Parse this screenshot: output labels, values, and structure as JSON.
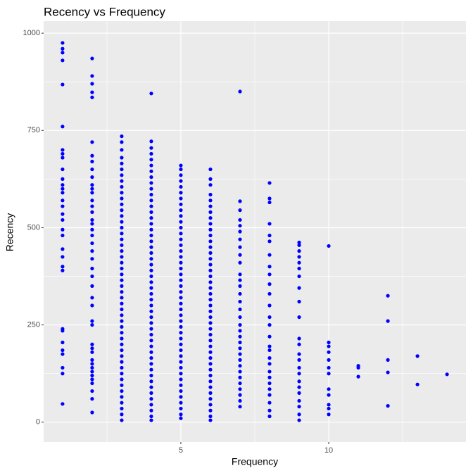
{
  "chart_data": {
    "type": "scatter",
    "title": "Recency vs Frequency",
    "x_label": "Frequency",
    "y_label": "Recency",
    "color": "#0000ff",
    "xlim": [
      0.36,
      14.64
    ],
    "ylim": [
      -51,
      1031
    ],
    "xticks": [
      5,
      10
    ],
    "yticks": [
      0,
      250,
      500,
      750,
      1000
    ],
    "grid": true,
    "columns": [
      {
        "x": 1,
        "values": [
          975,
          960,
          950,
          930,
          868,
          760,
          700,
          690,
          680,
          650,
          625,
          610,
          600,
          590,
          570,
          555,
          535,
          520,
          495,
          480,
          445,
          425,
          400,
          390,
          240,
          235,
          205,
          185,
          175,
          140,
          125,
          47
        ]
      },
      {
        "x": 2,
        "values": [
          935,
          890,
          870,
          848,
          835,
          720,
          685,
          670,
          650,
          630,
          610,
          600,
          590,
          570,
          555,
          540,
          520,
          510,
          495,
          480,
          460,
          440,
          420,
          395,
          375,
          350,
          320,
          300,
          260,
          250,
          200,
          190,
          180,
          160,
          150,
          140,
          130,
          120,
          110,
          100,
          80,
          60,
          25
        ]
      },
      {
        "x": 3,
        "values": [
          735,
          720,
          700,
          680,
          665,
          650,
          635,
          620,
          605,
          590,
          575,
          560,
          545,
          530,
          515,
          500,
          485,
          470,
          455,
          440,
          425,
          410,
          395,
          380,
          365,
          350,
          335,
          320,
          305,
          290,
          275,
          260,
          245,
          230,
          215,
          200,
          185,
          170,
          155,
          140,
          125,
          110,
          95,
          80,
          65,
          50,
          35,
          20,
          5
        ]
      },
      {
        "x": 4,
        "values": [
          845,
          722,
          705,
          690,
          675,
          660,
          645,
          630,
          615,
          600,
          585,
          570,
          555,
          540,
          525,
          510,
          495,
          480,
          465,
          450,
          435,
          420,
          405,
          390,
          375,
          360,
          345,
          330,
          315,
          300,
          285,
          270,
          255,
          240,
          225,
          210,
          195,
          180,
          165,
          150,
          135,
          120,
          105,
          90,
          75,
          60,
          45,
          30,
          15,
          5
        ]
      },
      {
        "x": 5,
        "values": [
          660,
          650,
          635,
          620,
          605,
          590,
          575,
          560,
          545,
          530,
          515,
          500,
          485,
          470,
          455,
          440,
          425,
          410,
          395,
          380,
          365,
          350,
          335,
          320,
          305,
          290,
          275,
          260,
          245,
          230,
          215,
          200,
          185,
          170,
          155,
          140,
          125,
          110,
          95,
          80,
          65,
          50,
          35,
          20,
          10
        ]
      },
      {
        "x": 6,
        "values": [
          650,
          625,
          610,
          585,
          570,
          555,
          540,
          525,
          510,
          495,
          480,
          465,
          450,
          435,
          420,
          405,
          390,
          375,
          360,
          345,
          330,
          315,
          300,
          285,
          270,
          255,
          240,
          225,
          210,
          195,
          180,
          165,
          150,
          135,
          120,
          105,
          90,
          75,
          60,
          45,
          30,
          15,
          5
        ]
      },
      {
        "x": 7,
        "values": [
          850,
          568,
          545,
          520,
          505,
          490,
          470,
          450,
          430,
          410,
          380,
          365,
          350,
          330,
          310,
          290,
          270,
          250,
          235,
          220,
          205,
          190,
          175,
          160,
          145,
          130,
          115,
          100,
          85,
          70,
          55,
          40
        ]
      },
      {
        "x": 8,
        "values": [
          615,
          575,
          565,
          510,
          480,
          465,
          430,
          400,
          380,
          355,
          330,
          300,
          270,
          250,
          220,
          195,
          185,
          165,
          150,
          130,
          115,
          100,
          85,
          70,
          50,
          30,
          15
        ]
      },
      {
        "x": 9,
        "values": [
          462,
          455,
          440,
          425,
          410,
          395,
          375,
          345,
          310,
          270,
          215,
          200,
          175,
          160,
          140,
          125,
          105,
          90,
          75,
          55,
          40,
          20,
          5
        ]
      },
      {
        "x": 10,
        "values": [
          453,
          205,
          195,
          180,
          160,
          140,
          125,
          85,
          70,
          45,
          35,
          20
        ]
      },
      {
        "x": 11,
        "values": [
          145,
          140,
          117
        ]
      },
      {
        "x": 12,
        "values": [
          325,
          260,
          160,
          128,
          42
        ]
      },
      {
        "x": 13,
        "values": [
          170,
          97
        ]
      },
      {
        "x": 14,
        "values": [
          123
        ]
      }
    ]
  }
}
